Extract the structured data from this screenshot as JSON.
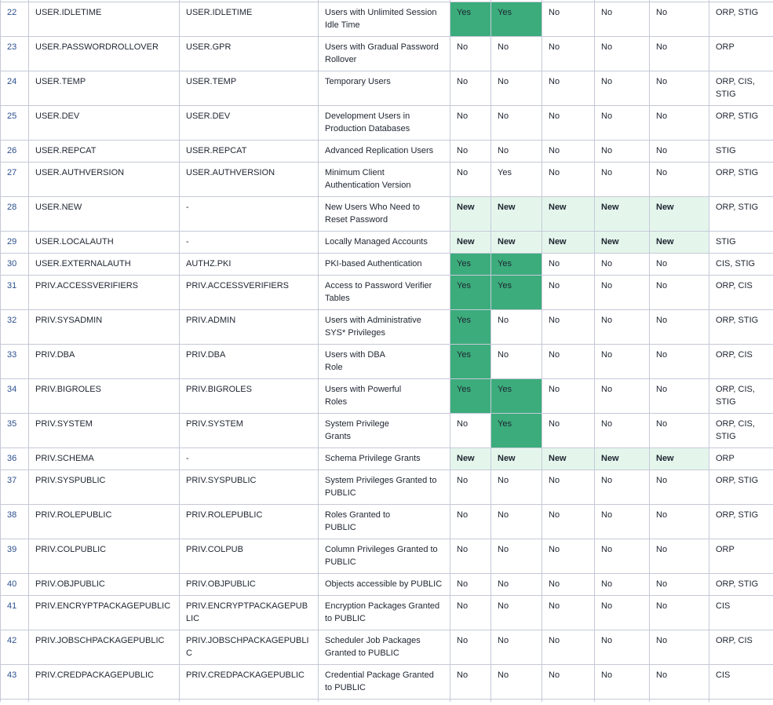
{
  "colors": {
    "yes_highlight": "#3cac7c",
    "new_highlight": "#e4f6ec",
    "grid_line": "#c5c9d8",
    "row_number_text": "#2b4f8e",
    "body_text": "#1e2430"
  },
  "table": {
    "columns": [
      "row-number",
      "finding-id",
      "oracle-name",
      "description",
      "value-1",
      "value-2",
      "value-3",
      "value-4",
      "value-5",
      "tags"
    ],
    "rows": [
      {
        "num": "22",
        "name": "USER.IDLETIME",
        "alias": "USER.IDLETIME",
        "desc": "Users with Unlimited Session\nIdle Time",
        "values": [
          {
            "text": "Yes",
            "highlight": "yes"
          },
          {
            "text": "Yes",
            "highlight": "yes"
          },
          {
            "text": "No",
            "highlight": "none"
          },
          {
            "text": "No",
            "highlight": "none"
          },
          {
            "text": "No",
            "highlight": "none"
          }
        ],
        "tags": "ORP, STIG"
      },
      {
        "num": "23",
        "name": "USER.PASSWORDROLLOVER",
        "alias": "USER.GPR",
        "desc": "Users with Gradual Password\nRollover",
        "values": [
          {
            "text": "No",
            "highlight": "none"
          },
          {
            "text": "No",
            "highlight": "none"
          },
          {
            "text": "No",
            "highlight": "none"
          },
          {
            "text": "No",
            "highlight": "none"
          },
          {
            "text": "No",
            "highlight": "none"
          }
        ],
        "tags": "ORP"
      },
      {
        "num": "24",
        "name": "USER.TEMP",
        "alias": "USER.TEMP",
        "desc": "Temporary Users",
        "values": [
          {
            "text": "No",
            "highlight": "none"
          },
          {
            "text": "No",
            "highlight": "none"
          },
          {
            "text": "No",
            "highlight": "none"
          },
          {
            "text": "No",
            "highlight": "none"
          },
          {
            "text": "No",
            "highlight": "none"
          }
        ],
        "tags": "ORP, CIS, STIG"
      },
      {
        "num": "25",
        "name": "USER.DEV",
        "alias": "USER.DEV",
        "desc": "Development Users in\nProduction Databases",
        "values": [
          {
            "text": "No",
            "highlight": "none"
          },
          {
            "text": "No",
            "highlight": "none"
          },
          {
            "text": "No",
            "highlight": "none"
          },
          {
            "text": "No",
            "highlight": "none"
          },
          {
            "text": "No",
            "highlight": "none"
          }
        ],
        "tags": "ORP, STIG"
      },
      {
        "num": "26",
        "name": "USER.REPCAT",
        "alias": "USER.REPCAT",
        "desc": "Advanced Replication Users",
        "values": [
          {
            "text": "No",
            "highlight": "none"
          },
          {
            "text": "No",
            "highlight": "none"
          },
          {
            "text": "No",
            "highlight": "none"
          },
          {
            "text": "No",
            "highlight": "none"
          },
          {
            "text": "No",
            "highlight": "none"
          }
        ],
        "tags": "STIG"
      },
      {
        "num": "27",
        "name": "USER.AUTHVERSION",
        "alias": "USER.AUTHVERSION",
        "desc": "Minimum Client\nAuthentication Version",
        "values": [
          {
            "text": "No",
            "highlight": "none"
          },
          {
            "text": "Yes",
            "highlight": "none"
          },
          {
            "text": "No",
            "highlight": "none"
          },
          {
            "text": "No",
            "highlight": "none"
          },
          {
            "text": "No",
            "highlight": "none"
          }
        ],
        "tags": "ORP, STIG"
      },
      {
        "num": "28",
        "name": "USER.NEW",
        "alias": "-",
        "desc": "New Users Who Need to\nReset Password",
        "values": [
          {
            "text": "New",
            "highlight": "new"
          },
          {
            "text": "New",
            "highlight": "new"
          },
          {
            "text": "New",
            "highlight": "new"
          },
          {
            "text": "New",
            "highlight": "new"
          },
          {
            "text": "New",
            "highlight": "new"
          }
        ],
        "tags": "ORP, STIG"
      },
      {
        "num": "29",
        "name": "USER.LOCALAUTH",
        "alias": "-",
        "desc": "Locally Managed Accounts",
        "values": [
          {
            "text": "New",
            "highlight": "new"
          },
          {
            "text": "New",
            "highlight": "new"
          },
          {
            "text": "New",
            "highlight": "new"
          },
          {
            "text": "New",
            "highlight": "new"
          },
          {
            "text": "New",
            "highlight": "new"
          }
        ],
        "tags": "STIG"
      },
      {
        "num": "30",
        "name": "USER.EXTERNALAUTH",
        "alias": "AUTHZ.PKI",
        "desc": "PKI-based Authentication",
        "values": [
          {
            "text": "Yes",
            "highlight": "yes"
          },
          {
            "text": "Yes",
            "highlight": "yes"
          },
          {
            "text": "No",
            "highlight": "none"
          },
          {
            "text": "No",
            "highlight": "none"
          },
          {
            "text": "No",
            "highlight": "none"
          }
        ],
        "tags": "CIS, STIG"
      },
      {
        "num": "31",
        "name": "PRIV.ACCESSVERIFIERS",
        "alias": "PRIV.ACCESSVERIFIERS",
        "desc": "Access to Password Verifier\nTables",
        "values": [
          {
            "text": "Yes",
            "highlight": "yes"
          },
          {
            "text": "Yes",
            "highlight": "yes"
          },
          {
            "text": "No",
            "highlight": "none"
          },
          {
            "text": "No",
            "highlight": "none"
          },
          {
            "text": "No",
            "highlight": "none"
          }
        ],
        "tags": "ORP, CIS"
      },
      {
        "num": "32",
        "name": "PRIV.SYSADMIN",
        "alias": "PRIV.ADMIN",
        "desc": "Users with Administrative\nSYS* Privileges",
        "values": [
          {
            "text": "Yes",
            "highlight": "yes"
          },
          {
            "text": "No",
            "highlight": "none"
          },
          {
            "text": "No",
            "highlight": "none"
          },
          {
            "text": "No",
            "highlight": "none"
          },
          {
            "text": "No",
            "highlight": "none"
          }
        ],
        "tags": "ORP, STIG"
      },
      {
        "num": "33",
        "name": "PRIV.DBA",
        "alias": "PRIV.DBA",
        "desc": "Users with DBA\nRole",
        "values": [
          {
            "text": "Yes",
            "highlight": "yes"
          },
          {
            "text": "No",
            "highlight": "none"
          },
          {
            "text": "No",
            "highlight": "none"
          },
          {
            "text": "No",
            "highlight": "none"
          },
          {
            "text": "No",
            "highlight": "none"
          }
        ],
        "tags": "ORP, CIS"
      },
      {
        "num": "34",
        "name": "PRIV.BIGROLES",
        "alias": "PRIV.BIGROLES",
        "desc": "Users with Powerful\nRoles",
        "values": [
          {
            "text": "Yes",
            "highlight": "yes"
          },
          {
            "text": "Yes",
            "highlight": "yes"
          },
          {
            "text": "No",
            "highlight": "none"
          },
          {
            "text": "No",
            "highlight": "none"
          },
          {
            "text": "No",
            "highlight": "none"
          }
        ],
        "tags": "ORP, CIS, STIG"
      },
      {
        "num": "35",
        "name": "PRIV.SYSTEM",
        "alias": "PRIV.SYSTEM",
        "desc": "System Privilege\nGrants",
        "values": [
          {
            "text": "No",
            "highlight": "none"
          },
          {
            "text": "Yes",
            "highlight": "yes"
          },
          {
            "text": "No",
            "highlight": "none"
          },
          {
            "text": "No",
            "highlight": "none"
          },
          {
            "text": "No",
            "highlight": "none"
          }
        ],
        "tags": "ORP, CIS, STIG"
      },
      {
        "num": "36",
        "name": "PRIV.SCHEMA",
        "alias": "-",
        "desc": "Schema Privilege Grants",
        "values": [
          {
            "text": "New",
            "highlight": "new"
          },
          {
            "text": "New",
            "highlight": "new"
          },
          {
            "text": "New",
            "highlight": "new"
          },
          {
            "text": "New",
            "highlight": "new"
          },
          {
            "text": "New",
            "highlight": "new"
          }
        ],
        "tags": "ORP"
      },
      {
        "num": "37",
        "name": "PRIV.SYSPUBLIC",
        "alias": "PRIV.SYSPUBLIC",
        "desc": "System Privileges Granted to\nPUBLIC",
        "values": [
          {
            "text": "No",
            "highlight": "none"
          },
          {
            "text": "No",
            "highlight": "none"
          },
          {
            "text": "No",
            "highlight": "none"
          },
          {
            "text": "No",
            "highlight": "none"
          },
          {
            "text": "No",
            "highlight": "none"
          }
        ],
        "tags": "ORP, STIG"
      },
      {
        "num": "38",
        "name": "PRIV.ROLEPUBLIC",
        "alias": "PRIV.ROLEPUBLIC",
        "desc": "Roles Granted to\nPUBLIC",
        "values": [
          {
            "text": "No",
            "highlight": "none"
          },
          {
            "text": "No",
            "highlight": "none"
          },
          {
            "text": "No",
            "highlight": "none"
          },
          {
            "text": "No",
            "highlight": "none"
          },
          {
            "text": "No",
            "highlight": "none"
          }
        ],
        "tags": "ORP, STIG"
      },
      {
        "num": "39",
        "name": "PRIV.COLPUBLIC",
        "alias": "PRIV.COLPUB",
        "desc": "Column Privileges Granted to\nPUBLIC",
        "values": [
          {
            "text": "No",
            "highlight": "none"
          },
          {
            "text": "No",
            "highlight": "none"
          },
          {
            "text": "No",
            "highlight": "none"
          },
          {
            "text": "No",
            "highlight": "none"
          },
          {
            "text": "No",
            "highlight": "none"
          }
        ],
        "tags": "ORP"
      },
      {
        "num": "40",
        "name": "PRIV.OBJPUBLIC",
        "alias": "PRIV.OBJPUBLIC",
        "desc": "Objects accessible by PUBLIC",
        "values": [
          {
            "text": "No",
            "highlight": "none"
          },
          {
            "text": "No",
            "highlight": "none"
          },
          {
            "text": "No",
            "highlight": "none"
          },
          {
            "text": "No",
            "highlight": "none"
          },
          {
            "text": "No",
            "highlight": "none"
          }
        ],
        "tags": "ORP, STIG"
      },
      {
        "num": "41",
        "name": "PRIV.ENCRYPTPACKAGEPUBLIC",
        "alias": "PRIV.ENCRYPTPACKAGEPUBLIC",
        "desc": "Encryption Packages Granted\nto PUBLIC",
        "values": [
          {
            "text": "No",
            "highlight": "none"
          },
          {
            "text": "No",
            "highlight": "none"
          },
          {
            "text": "No",
            "highlight": "none"
          },
          {
            "text": "No",
            "highlight": "none"
          },
          {
            "text": "No",
            "highlight": "none"
          }
        ],
        "tags": "CIS"
      },
      {
        "num": "42",
        "name": "PRIV.JOBSCHPACKAGEPUBLIC",
        "alias": "PRIV.JOBSCHPACKAGEPUBLIC",
        "desc": "Scheduler Job Packages\nGranted to PUBLIC",
        "values": [
          {
            "text": "No",
            "highlight": "none"
          },
          {
            "text": "No",
            "highlight": "none"
          },
          {
            "text": "No",
            "highlight": "none"
          },
          {
            "text": "No",
            "highlight": "none"
          },
          {
            "text": "No",
            "highlight": "none"
          }
        ],
        "tags": "ORP, CIS"
      },
      {
        "num": "43",
        "name": "PRIV.CREDPACKAGEPUBLIC",
        "alias": "PRIV.CREDPACKAGEPUBLIC",
        "desc": "Credential Package Granted\nto PUBLIC",
        "values": [
          {
            "text": "No",
            "highlight": "none"
          },
          {
            "text": "No",
            "highlight": "none"
          },
          {
            "text": "No",
            "highlight": "none"
          },
          {
            "text": "No",
            "highlight": "none"
          },
          {
            "text": "No",
            "highlight": "none"
          }
        ],
        "tags": "CIS"
      }
    ]
  }
}
